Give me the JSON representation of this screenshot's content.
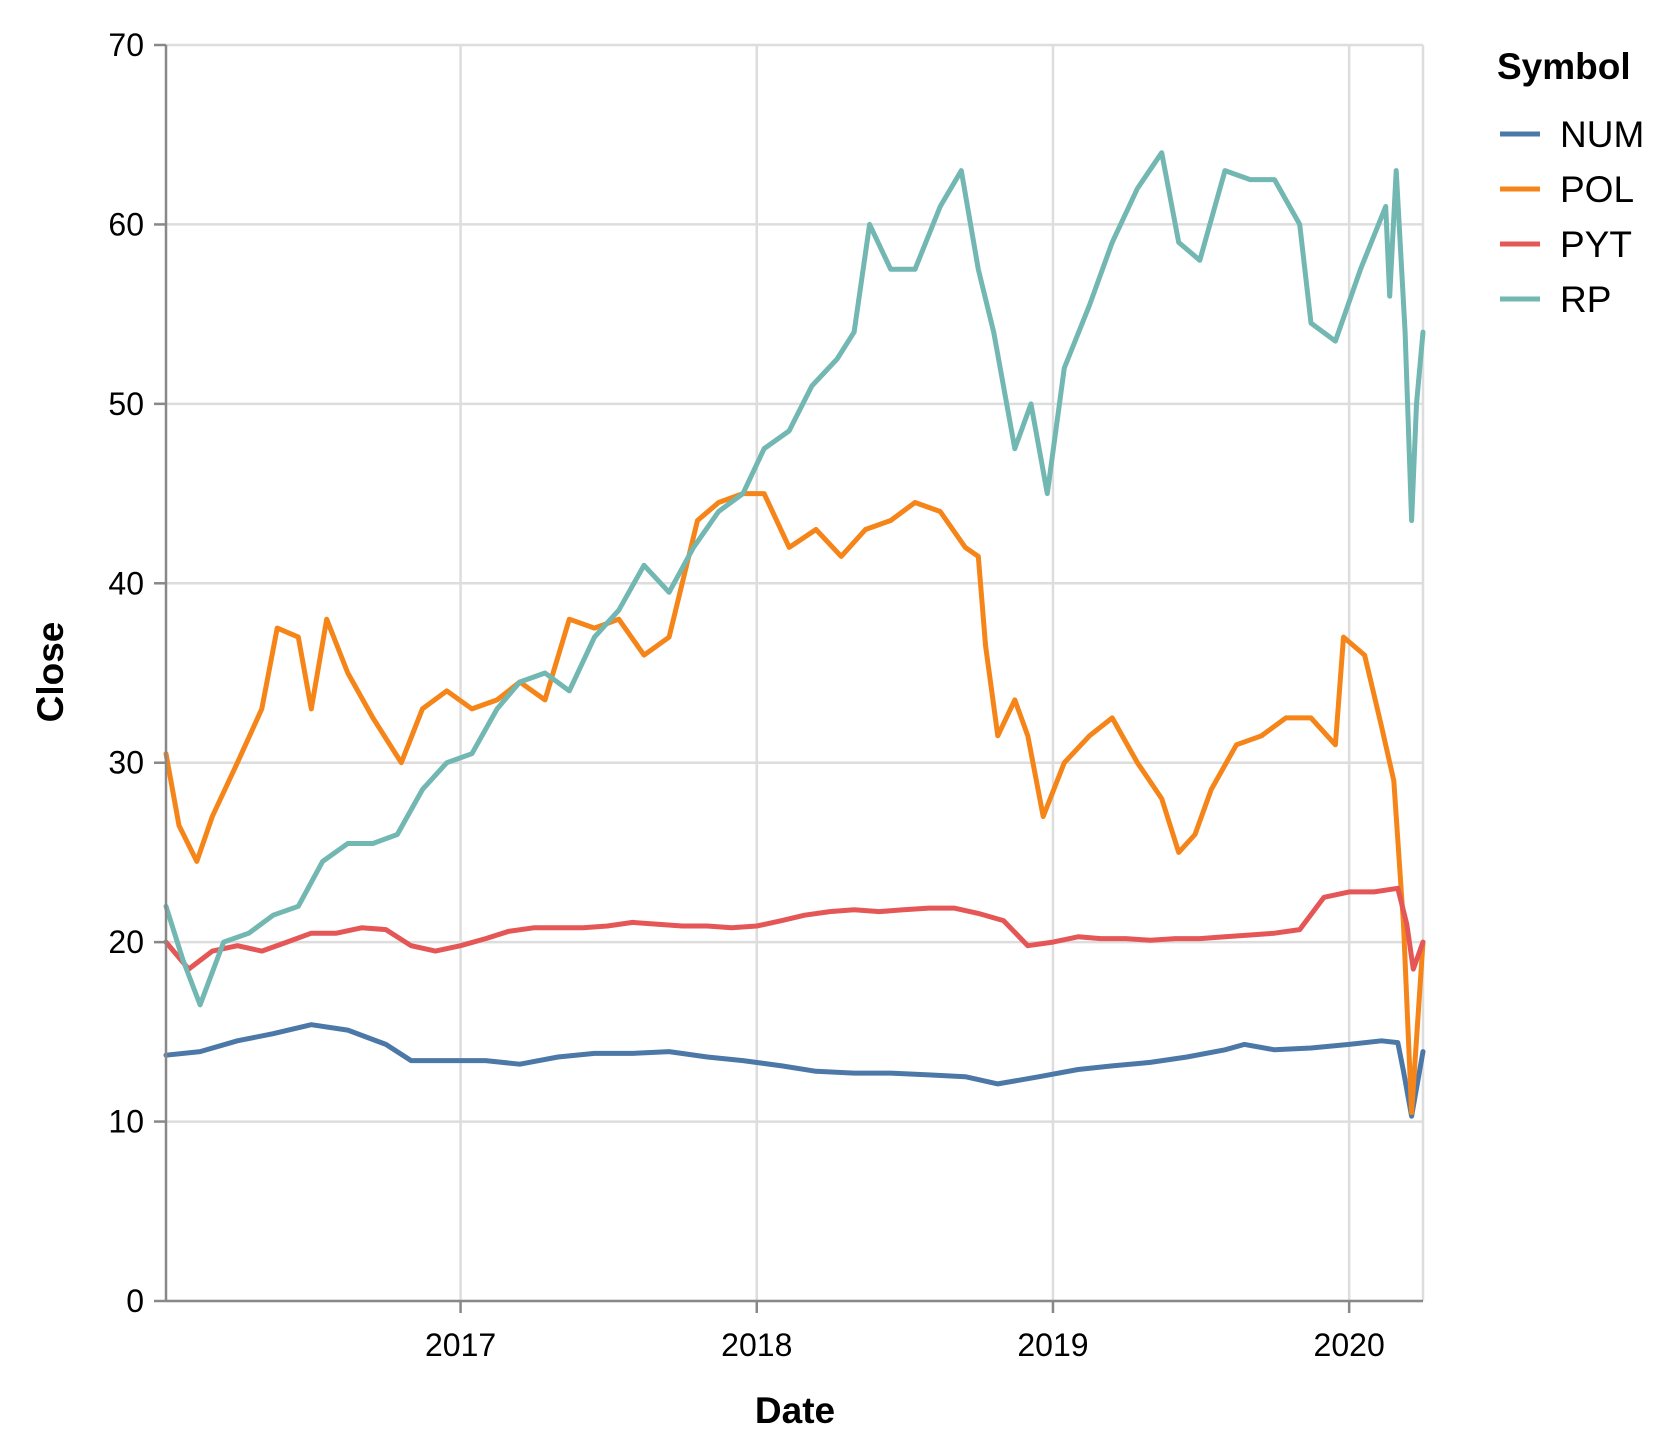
{
  "chart_data": {
    "type": "line",
    "xlabel": "Date",
    "ylabel": "Close",
    "x_ticks": [
      "2017",
      "2018",
      "2019",
      "2020"
    ],
    "x_tick_dates": [
      "2017-01-01",
      "2018-01-01",
      "2019-01-01",
      "2020-01-01"
    ],
    "y_ticks": [
      0,
      10,
      20,
      30,
      40,
      50,
      60,
      70
    ],
    "ylim": [
      0,
      70
    ],
    "xlim": [
      "2016-01-04",
      "2020-04-01"
    ],
    "grid": true,
    "legend": {
      "title": "Symbol",
      "position": "right"
    },
    "series": [
      {
        "name": "NUM",
        "color": "#4c78a8",
        "points": [
          [
            "2016-01-04",
            13.7
          ],
          [
            "2016-02-15",
            13.9
          ],
          [
            "2016-04-01",
            14.5
          ],
          [
            "2016-05-15",
            14.9
          ],
          [
            "2016-07-01",
            15.4
          ],
          [
            "2016-08-15",
            15.1
          ],
          [
            "2016-10-01",
            14.3
          ],
          [
            "2016-11-01",
            13.4
          ],
          [
            "2016-12-15",
            13.4
          ],
          [
            "2017-02-01",
            13.4
          ],
          [
            "2017-03-15",
            13.2
          ],
          [
            "2017-05-01",
            13.6
          ],
          [
            "2017-06-15",
            13.8
          ],
          [
            "2017-08-01",
            13.8
          ],
          [
            "2017-09-15",
            13.9
          ],
          [
            "2017-11-01",
            13.6
          ],
          [
            "2017-12-15",
            13.4
          ],
          [
            "2018-02-01",
            13.1
          ],
          [
            "2018-03-15",
            12.8
          ],
          [
            "2018-05-01",
            12.7
          ],
          [
            "2018-06-15",
            12.7
          ],
          [
            "2018-08-01",
            12.6
          ],
          [
            "2018-09-15",
            12.5
          ],
          [
            "2018-10-25",
            12.1
          ],
          [
            "2018-12-15",
            12.5
          ],
          [
            "2019-02-01",
            12.9
          ],
          [
            "2019-03-15",
            13.1
          ],
          [
            "2019-05-01",
            13.3
          ],
          [
            "2019-06-15",
            13.6
          ],
          [
            "2019-08-01",
            14.0
          ],
          [
            "2019-08-25",
            14.3
          ],
          [
            "2019-10-01",
            14.0
          ],
          [
            "2019-11-15",
            14.1
          ],
          [
            "2020-01-01",
            14.3
          ],
          [
            "2020-02-10",
            14.5
          ],
          [
            "2020-03-01",
            14.4
          ],
          [
            "2020-03-08",
            12.8
          ],
          [
            "2020-03-18",
            10.3
          ],
          [
            "2020-04-01",
            13.9
          ]
        ]
      },
      {
        "name": "POL",
        "color": "#f58518",
        "points": [
          [
            "2016-01-04",
            30.5
          ],
          [
            "2016-01-20",
            26.5
          ],
          [
            "2016-02-11",
            24.5
          ],
          [
            "2016-03-01",
            27.0
          ],
          [
            "2016-04-01",
            30.0
          ],
          [
            "2016-05-01",
            33.0
          ],
          [
            "2016-05-20",
            37.5
          ],
          [
            "2016-06-15",
            37.0
          ],
          [
            "2016-07-01",
            33.0
          ],
          [
            "2016-07-20",
            38.0
          ],
          [
            "2016-08-15",
            35.0
          ],
          [
            "2016-09-15",
            32.5
          ],
          [
            "2016-10-20",
            30.0
          ],
          [
            "2016-11-15",
            33.0
          ],
          [
            "2016-12-15",
            34.0
          ],
          [
            "2017-01-15",
            33.0
          ],
          [
            "2017-02-15",
            33.5
          ],
          [
            "2017-03-15",
            34.5
          ],
          [
            "2017-04-15",
            33.5
          ],
          [
            "2017-05-15",
            38.0
          ],
          [
            "2017-06-15",
            37.5
          ],
          [
            "2017-07-15",
            38.0
          ],
          [
            "2017-08-15",
            36.0
          ],
          [
            "2017-09-15",
            37.0
          ],
          [
            "2017-10-20",
            43.5
          ],
          [
            "2017-11-15",
            44.5
          ],
          [
            "2017-12-15",
            45.0
          ],
          [
            "2018-01-10",
            45.0
          ],
          [
            "2018-02-10",
            42.0
          ],
          [
            "2018-03-15",
            43.0
          ],
          [
            "2018-04-15",
            41.5
          ],
          [
            "2018-05-15",
            43.0
          ],
          [
            "2018-06-15",
            43.5
          ],
          [
            "2018-07-15",
            44.5
          ],
          [
            "2018-08-15",
            44.0
          ],
          [
            "2018-09-15",
            42.0
          ],
          [
            "2018-10-01",
            41.5
          ],
          [
            "2018-10-10",
            36.5
          ],
          [
            "2018-10-25",
            31.5
          ],
          [
            "2018-11-15",
            33.5
          ],
          [
            "2018-12-01",
            31.5
          ],
          [
            "2018-12-20",
            27.0
          ],
          [
            "2019-01-15",
            30.0
          ],
          [
            "2019-02-15",
            31.5
          ],
          [
            "2019-03-15",
            32.5
          ],
          [
            "2019-04-15",
            30.0
          ],
          [
            "2019-05-15",
            28.0
          ],
          [
            "2019-06-05",
            25.0
          ],
          [
            "2019-06-25",
            26.0
          ],
          [
            "2019-07-15",
            28.5
          ],
          [
            "2019-08-15",
            31.0
          ],
          [
            "2019-09-15",
            31.5
          ],
          [
            "2019-10-15",
            32.5
          ],
          [
            "2019-11-15",
            32.5
          ],
          [
            "2019-12-15",
            31.0
          ],
          [
            "2019-12-25",
            37.0
          ],
          [
            "2020-01-20",
            36.0
          ],
          [
            "2020-02-10",
            32.0
          ],
          [
            "2020-02-25",
            29.0
          ],
          [
            "2020-03-08",
            21.0
          ],
          [
            "2020-03-18",
            10.5
          ],
          [
            "2020-04-01",
            20.0
          ]
        ]
      },
      {
        "name": "PYT",
        "color": "#e45756",
        "points": [
          [
            "2016-01-04",
            20.0
          ],
          [
            "2016-02-01",
            18.5
          ],
          [
            "2016-03-01",
            19.5
          ],
          [
            "2016-04-01",
            19.8
          ],
          [
            "2016-05-01",
            19.5
          ],
          [
            "2016-06-01",
            20.0
          ],
          [
            "2016-07-01",
            20.5
          ],
          [
            "2016-08-01",
            20.5
          ],
          [
            "2016-09-01",
            20.8
          ],
          [
            "2016-10-01",
            20.7
          ],
          [
            "2016-11-01",
            19.8
          ],
          [
            "2016-12-01",
            19.5
          ],
          [
            "2017-01-01",
            19.8
          ],
          [
            "2017-02-01",
            20.2
          ],
          [
            "2017-03-01",
            20.6
          ],
          [
            "2017-04-01",
            20.8
          ],
          [
            "2017-05-01",
            20.8
          ],
          [
            "2017-06-01",
            20.8
          ],
          [
            "2017-07-01",
            20.9
          ],
          [
            "2017-08-01",
            21.1
          ],
          [
            "2017-09-01",
            21.0
          ],
          [
            "2017-10-01",
            20.9
          ],
          [
            "2017-11-01",
            20.9
          ],
          [
            "2017-12-01",
            20.8
          ],
          [
            "2018-01-01",
            20.9
          ],
          [
            "2018-02-01",
            21.2
          ],
          [
            "2018-03-01",
            21.5
          ],
          [
            "2018-04-01",
            21.7
          ],
          [
            "2018-05-01",
            21.8
          ],
          [
            "2018-06-01",
            21.7
          ],
          [
            "2018-07-01",
            21.8
          ],
          [
            "2018-08-01",
            21.9
          ],
          [
            "2018-09-01",
            21.9
          ],
          [
            "2018-10-01",
            21.6
          ],
          [
            "2018-11-01",
            21.2
          ],
          [
            "2018-12-01",
            19.8
          ],
          [
            "2019-01-01",
            20.0
          ],
          [
            "2019-02-01",
            20.3
          ],
          [
            "2019-03-01",
            20.2
          ],
          [
            "2019-04-01",
            20.2
          ],
          [
            "2019-05-01",
            20.1
          ],
          [
            "2019-06-01",
            20.2
          ],
          [
            "2019-07-01",
            20.2
          ],
          [
            "2019-08-01",
            20.3
          ],
          [
            "2019-09-01",
            20.4
          ],
          [
            "2019-10-01",
            20.5
          ],
          [
            "2019-11-01",
            20.7
          ],
          [
            "2019-12-01",
            22.5
          ],
          [
            "2020-01-01",
            22.8
          ],
          [
            "2020-02-01",
            22.8
          ],
          [
            "2020-03-01",
            23.0
          ],
          [
            "2020-03-12",
            21.0
          ],
          [
            "2020-03-20",
            18.5
          ],
          [
            "2020-04-01",
            20.0
          ]
        ]
      },
      {
        "name": "RP",
        "color": "#72b7b2",
        "points": [
          [
            "2016-01-04",
            22.0
          ],
          [
            "2016-01-25",
            19.0
          ],
          [
            "2016-02-15",
            16.5
          ],
          [
            "2016-03-15",
            20.0
          ],
          [
            "2016-04-15",
            20.5
          ],
          [
            "2016-05-15",
            21.5
          ],
          [
            "2016-06-15",
            22.0
          ],
          [
            "2016-07-15",
            24.5
          ],
          [
            "2016-08-15",
            25.5
          ],
          [
            "2016-09-15",
            25.5
          ],
          [
            "2016-10-15",
            26.0
          ],
          [
            "2016-11-15",
            28.5
          ],
          [
            "2016-12-15",
            30.0
          ],
          [
            "2017-01-15",
            30.5
          ],
          [
            "2017-02-15",
            33.0
          ],
          [
            "2017-03-15",
            34.5
          ],
          [
            "2017-04-15",
            35.0
          ],
          [
            "2017-05-15",
            34.0
          ],
          [
            "2017-06-15",
            37.0
          ],
          [
            "2017-07-15",
            38.5
          ],
          [
            "2017-08-15",
            41.0
          ],
          [
            "2017-09-15",
            39.5
          ],
          [
            "2017-10-15",
            42.0
          ],
          [
            "2017-11-15",
            44.0
          ],
          [
            "2017-12-15",
            45.0
          ],
          [
            "2018-01-10",
            47.5
          ],
          [
            "2018-02-10",
            48.5
          ],
          [
            "2018-03-10",
            51.0
          ],
          [
            "2018-04-10",
            52.5
          ],
          [
            "2018-05-01",
            54.0
          ],
          [
            "2018-05-20",
            60.0
          ],
          [
            "2018-06-15",
            57.5
          ],
          [
            "2018-07-15",
            57.5
          ],
          [
            "2018-08-15",
            61.0
          ],
          [
            "2018-09-10",
            63.0
          ],
          [
            "2018-10-01",
            57.5
          ],
          [
            "2018-10-20",
            54.0
          ],
          [
            "2018-11-15",
            47.5
          ],
          [
            "2018-12-05",
            50.0
          ],
          [
            "2018-12-25",
            45.0
          ],
          [
            "2019-01-15",
            52.0
          ],
          [
            "2019-02-15",
            55.5
          ],
          [
            "2019-03-15",
            59.0
          ],
          [
            "2019-04-15",
            62.0
          ],
          [
            "2019-05-15",
            64.0
          ],
          [
            "2019-06-05",
            59.0
          ],
          [
            "2019-07-01",
            58.0
          ],
          [
            "2019-08-01",
            63.0
          ],
          [
            "2019-09-01",
            62.5
          ],
          [
            "2019-10-01",
            62.5
          ],
          [
            "2019-11-01",
            60.0
          ],
          [
            "2019-11-15",
            54.5
          ],
          [
            "2019-12-15",
            53.5
          ],
          [
            "2020-01-15",
            57.5
          ],
          [
            "2020-02-15",
            61.0
          ],
          [
            "2020-02-20",
            56.0
          ],
          [
            "2020-02-28",
            63.0
          ],
          [
            "2020-03-10",
            54.0
          ],
          [
            "2020-03-18",
            43.5
          ],
          [
            "2020-03-24",
            50.0
          ],
          [
            "2020-04-01",
            54.0
          ]
        ]
      }
    ]
  }
}
